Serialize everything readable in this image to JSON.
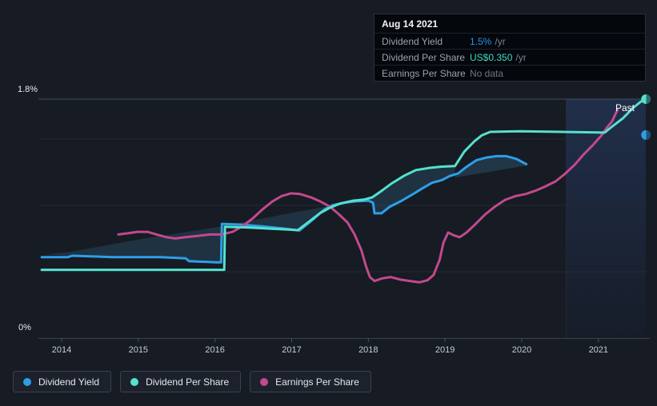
{
  "axis": {
    "y_max_label": "1.8%",
    "y_min_label": "0%"
  },
  "tooltip": {
    "title": "Aug 14 2021",
    "rows": [
      {
        "label": "Dividend Yield",
        "value": "1.5%",
        "suffix": "/yr",
        "color": "#2196F3"
      },
      {
        "label": "Dividend Per Share",
        "value": "US$0.350",
        "suffix": "/yr",
        "color": "#43D9C5"
      },
      {
        "label": "Earnings Per Share",
        "value": "No data",
        "suffix": "",
        "color": "#6E7681"
      }
    ]
  },
  "legend": {
    "items": [
      {
        "label": "Dividend Yield",
        "color": "#2D9FE8"
      },
      {
        "label": "Dividend Per Share",
        "color": "#55E1CC"
      },
      {
        "label": "Earnings Per Share",
        "color": "#C2498D"
      }
    ]
  },
  "chart_data": {
    "type": "line",
    "past_label": "Past",
    "x_ticks": [
      2014,
      2015,
      2016,
      2017,
      2018,
      2019,
      2020,
      2021
    ],
    "x_domain": [
      2013.7,
      2021.62
    ],
    "y_left": {
      "label": "Dividend Yield (%)",
      "domain": [
        0,
        1.8
      ],
      "gridlines": [
        0.5,
        1.0,
        1.5
      ],
      "top_line": 1.8
    },
    "y_dps": {
      "label": "Dividend Per Share (US$)",
      "domain": [
        0,
        0.35
      ]
    },
    "past_band_start_t": 2020.58,
    "current": {
      "date": "Aug 14 2021",
      "dividend_yield_pct": 1.5,
      "dividend_per_share_usd": 0.35,
      "earnings_per_share": null
    },
    "series": [
      {
        "name": "Dividend Yield",
        "unit": "%",
        "scale": "pct",
        "color": "#2D9FE8",
        "points": [
          [
            2013.74,
            0.61
          ],
          [
            2014.08,
            0.61
          ],
          [
            2014.14,
            0.62
          ],
          [
            2014.66,
            0.61
          ],
          [
            2015.29,
            0.61
          ],
          [
            2015.62,
            0.6
          ],
          [
            2015.66,
            0.58
          ],
          [
            2016.02,
            0.57
          ],
          [
            2016.08,
            0.57
          ],
          [
            2016.09,
            0.86
          ],
          [
            2016.33,
            0.855
          ],
          [
            2016.64,
            0.84
          ],
          [
            2016.9,
            0.825
          ],
          [
            2017.1,
            0.81
          ],
          [
            2017.27,
            0.89
          ],
          [
            2017.43,
            0.97
          ],
          [
            2017.53,
            1.0
          ],
          [
            2017.69,
            1.02
          ],
          [
            2017.84,
            1.03
          ],
          [
            2018.0,
            1.035
          ],
          [
            2018.06,
            1.02
          ],
          [
            2018.08,
            0.94
          ],
          [
            2018.17,
            0.94
          ],
          [
            2018.28,
            0.99
          ],
          [
            2018.42,
            1.03
          ],
          [
            2018.57,
            1.08
          ],
          [
            2018.71,
            1.13
          ],
          [
            2018.83,
            1.17
          ],
          [
            2018.96,
            1.19
          ],
          [
            2019.06,
            1.22
          ],
          [
            2019.17,
            1.24
          ],
          [
            2019.28,
            1.29
          ],
          [
            2019.41,
            1.34
          ],
          [
            2019.54,
            1.36
          ],
          [
            2019.67,
            1.37
          ],
          [
            2019.8,
            1.37
          ],
          [
            2019.93,
            1.35
          ],
          [
            2020.06,
            1.31
          ]
        ],
        "end_dot": {
          "t": 2021.62,
          "v": 1.53
        }
      },
      {
        "name": "Dividend Per Share",
        "unit": "US$",
        "scale": "dps",
        "color": "#55E1CC",
        "points": [
          [
            2013.74,
            0.1
          ],
          [
            2016.12,
            0.1
          ],
          [
            2016.13,
            0.163
          ],
          [
            2016.43,
            0.162
          ],
          [
            2016.75,
            0.16
          ],
          [
            2016.96,
            0.159
          ],
          [
            2017.08,
            0.158
          ],
          [
            2017.22,
            0.17
          ],
          [
            2017.37,
            0.183
          ],
          [
            2017.5,
            0.191
          ],
          [
            2017.63,
            0.197
          ],
          [
            2017.79,
            0.201
          ],
          [
            2017.95,
            0.203
          ],
          [
            2018.05,
            0.206
          ],
          [
            2018.19,
            0.217
          ],
          [
            2018.31,
            0.227
          ],
          [
            2018.47,
            0.238
          ],
          [
            2018.62,
            0.246
          ],
          [
            2018.78,
            0.249
          ],
          [
            2018.94,
            0.251
          ],
          [
            2019.13,
            0.252
          ],
          [
            2019.25,
            0.273
          ],
          [
            2019.38,
            0.288
          ],
          [
            2019.48,
            0.297
          ],
          [
            2019.59,
            0.302
          ],
          [
            2019.98,
            0.303
          ],
          [
            2020.5,
            0.302
          ],
          [
            2021.08,
            0.301
          ],
          [
            2021.18,
            0.31
          ],
          [
            2021.32,
            0.322
          ],
          [
            2021.44,
            0.336
          ],
          [
            2021.55,
            0.346
          ],
          [
            2021.62,
            0.35
          ]
        ],
        "end_dot": {
          "t": 2021.62,
          "v": 0.35
        }
      },
      {
        "name": "Earnings Per Share",
        "unit": "display-relative",
        "scale": "pct",
        "color": "#C2498D",
        "points": [
          [
            2014.74,
            0.78
          ],
          [
            2014.87,
            0.79
          ],
          [
            2014.99,
            0.8
          ],
          [
            2015.12,
            0.8
          ],
          [
            2015.24,
            0.78
          ],
          [
            2015.37,
            0.76
          ],
          [
            2015.48,
            0.75
          ],
          [
            2015.62,
            0.76
          ],
          [
            2015.78,
            0.77
          ],
          [
            2015.93,
            0.78
          ],
          [
            2016.08,
            0.78
          ],
          [
            2016.23,
            0.8
          ],
          [
            2016.35,
            0.84
          ],
          [
            2016.49,
            0.9
          ],
          [
            2016.62,
            0.97
          ],
          [
            2016.75,
            1.03
          ],
          [
            2016.87,
            1.07
          ],
          [
            2016.99,
            1.09
          ],
          [
            2017.11,
            1.085
          ],
          [
            2017.25,
            1.06
          ],
          [
            2017.37,
            1.03
          ],
          [
            2017.5,
            0.99
          ],
          [
            2017.62,
            0.93
          ],
          [
            2017.73,
            0.87
          ],
          [
            2017.82,
            0.78
          ],
          [
            2017.91,
            0.66
          ],
          [
            2017.97,
            0.54
          ],
          [
            2018.02,
            0.46
          ],
          [
            2018.08,
            0.43
          ],
          [
            2018.18,
            0.45
          ],
          [
            2018.29,
            0.46
          ],
          [
            2018.42,
            0.44
          ],
          [
            2018.54,
            0.43
          ],
          [
            2018.67,
            0.42
          ],
          [
            2018.77,
            0.435
          ],
          [
            2018.85,
            0.475
          ],
          [
            2018.93,
            0.59
          ],
          [
            2018.98,
            0.72
          ],
          [
            2019.04,
            0.795
          ],
          [
            2019.11,
            0.775
          ],
          [
            2019.19,
            0.76
          ],
          [
            2019.28,
            0.795
          ],
          [
            2019.4,
            0.86
          ],
          [
            2019.52,
            0.93
          ],
          [
            2019.65,
            0.99
          ],
          [
            2019.78,
            1.04
          ],
          [
            2019.92,
            1.07
          ],
          [
            2020.05,
            1.085
          ],
          [
            2020.18,
            1.11
          ],
          [
            2020.3,
            1.14
          ],
          [
            2020.44,
            1.18
          ],
          [
            2020.56,
            1.235
          ],
          [
            2020.69,
            1.305
          ],
          [
            2020.81,
            1.385
          ],
          [
            2020.93,
            1.455
          ],
          [
            2021.03,
            1.52
          ],
          [
            2021.11,
            1.585
          ],
          [
            2021.18,
            1.635
          ],
          [
            2021.22,
            1.685
          ],
          [
            2021.25,
            1.72
          ]
        ]
      }
    ],
    "fills": [
      {
        "scale": "pct",
        "opacity": 0.17,
        "points": [
          [
            2013.78,
            0.63
          ],
          [
            2014.12,
            0.65
          ],
          [
            2015.08,
            0.75
          ],
          [
            2016.08,
            0.84
          ],
          [
            2017.06,
            0.95
          ],
          [
            2018.05,
            1.05
          ],
          [
            2018.19,
            1.11
          ],
          [
            2018.31,
            1.17
          ],
          [
            2018.47,
            1.22
          ],
          [
            2018.62,
            1.26
          ],
          [
            2018.78,
            1.28
          ],
          [
            2018.94,
            1.29
          ],
          [
            2019.13,
            1.29
          ],
          [
            2019.13,
            1.23
          ],
          [
            2018.96,
            1.19
          ],
          [
            2018.83,
            1.17
          ],
          [
            2018.71,
            1.13
          ],
          [
            2018.57,
            1.08
          ],
          [
            2018.42,
            1.03
          ],
          [
            2018.28,
            0.99
          ],
          [
            2018.17,
            0.94
          ],
          [
            2018.08,
            0.94
          ],
          [
            2018.06,
            1.02
          ],
          [
            2018.0,
            1.035
          ],
          [
            2017.84,
            1.03
          ],
          [
            2017.69,
            1.02
          ],
          [
            2017.53,
            1.0
          ],
          [
            2017.43,
            0.97
          ],
          [
            2017.27,
            0.89
          ],
          [
            2017.1,
            0.81
          ],
          [
            2016.9,
            0.825
          ],
          [
            2016.64,
            0.84
          ],
          [
            2016.33,
            0.855
          ],
          [
            2016.09,
            0.86
          ],
          [
            2016.08,
            0.57
          ],
          [
            2016.02,
            0.57
          ],
          [
            2015.66,
            0.58
          ],
          [
            2015.62,
            0.6
          ],
          [
            2015.29,
            0.61
          ],
          [
            2014.66,
            0.61
          ],
          [
            2014.14,
            0.62
          ]
        ]
      },
      {
        "scale": "pct",
        "opacity": 0.2,
        "points": [
          [
            2019.13,
            1.22
          ],
          [
            2019.28,
            1.29
          ],
          [
            2019.41,
            1.34
          ],
          [
            2019.54,
            1.36
          ],
          [
            2019.67,
            1.37
          ],
          [
            2019.8,
            1.37
          ],
          [
            2019.93,
            1.35
          ],
          [
            2020.06,
            1.31
          ],
          [
            2020.06,
            1.3
          ],
          [
            2019.56,
            1.25
          ],
          [
            2019.13,
            1.21
          ]
        ]
      }
    ]
  }
}
